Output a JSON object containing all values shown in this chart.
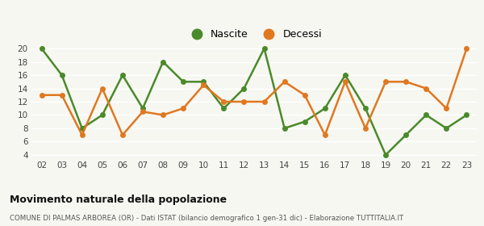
{
  "years": [
    "02",
    "03",
    "04",
    "05",
    "06",
    "07",
    "08",
    "09",
    "10",
    "11",
    "12",
    "13",
    "14",
    "15",
    "16",
    "17",
    "18",
    "19",
    "20",
    "21",
    "22",
    "23"
  ],
  "nascite": [
    20,
    16,
    8,
    10,
    16,
    11,
    18,
    15,
    15,
    11,
    14,
    20,
    8,
    9,
    11,
    16,
    11,
    4,
    7,
    10,
    8,
    10
  ],
  "decessi": [
    13,
    13,
    7,
    14,
    7,
    10.5,
    10,
    11,
    14.5,
    12,
    12,
    12,
    15,
    13,
    7,
    15,
    8,
    15,
    15,
    14,
    11,
    20
  ],
  "nascite_color": "#4a8a2a",
  "decessi_color": "#e07820",
  "background_color": "#f7f7f2",
  "grid_color": "#ffffff",
  "title": "Movimento naturale della popolazione",
  "subtitle": "COMUNE DI PALMAS ARBOREA (OR) - Dati ISTAT (bilancio demografico 1 gen-31 dic) - Elaborazione TUTTITALIA.IT",
  "ylim_min": 3.5,
  "ylim_max": 20.5,
  "yticks": [
    4,
    6,
    8,
    10,
    12,
    14,
    16,
    18,
    20
  ],
  "legend_nascite": "Nascite",
  "legend_decessi": "Decessi",
  "marker_size": 5,
  "line_width": 1.8
}
